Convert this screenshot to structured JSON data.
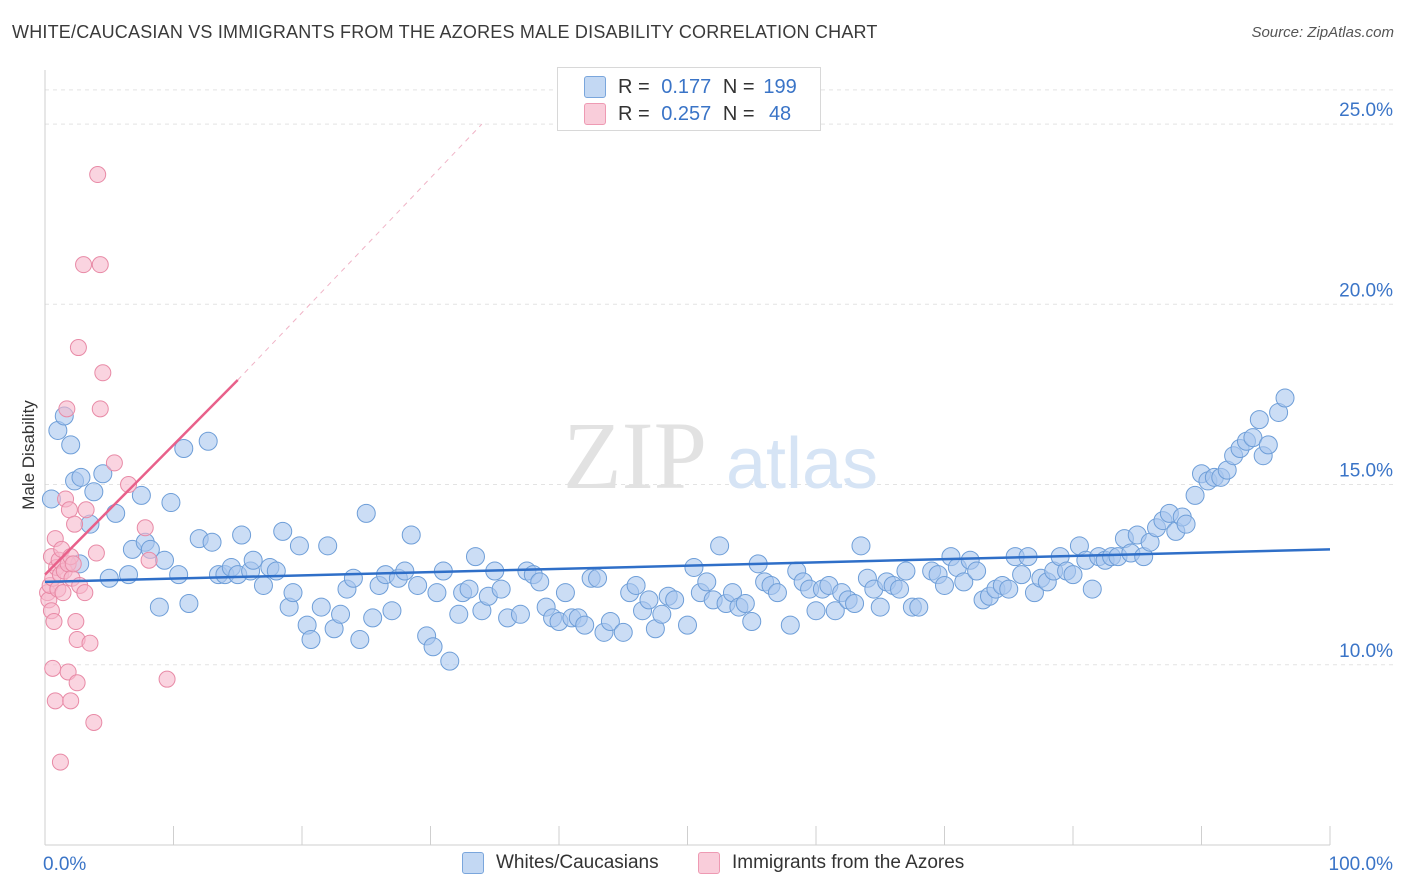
{
  "title": "WHITE/CAUCASIAN VS IMMIGRANTS FROM THE AZORES MALE DISABILITY CORRELATION CHART",
  "source": "Source: ZipAtlas.com",
  "watermark": {
    "zip": "ZIP",
    "atlas": "atlas"
  },
  "legend_top": {
    "rows": [
      {
        "r_label": "R =",
        "r_value": "0.177",
        "n_label": "N =",
        "n_value": "199",
        "color": "#a9c7ee"
      },
      {
        "r_label": "R =",
        "r_value": "0.257",
        "n_label": "N =",
        "n_value": "48",
        "color": "#f6b8cb"
      }
    ]
  },
  "legend_bottom": [
    {
      "label": "Whites/Caucasians",
      "color": "#a9c7ee"
    },
    {
      "label": "Immigrants from the Azores",
      "color": "#f6b8cb"
    }
  ],
  "colors": {
    "blue_fill": "#a9c7ee",
    "blue_stroke": "#6e9ed8",
    "blue_line": "#2f6fc8",
    "pink_fill": "#f6b8cb",
    "pink_stroke": "#e88aa6",
    "pink_line": "#e8608a",
    "axis_text": "#3a74c7",
    "grid": "#e3e3e3"
  },
  "chart_data": {
    "type": "scatter",
    "title": "WHITE/CAUCASIAN VS IMMIGRANTS FROM THE AZORES MALE DISABILITY CORRELATION CHART",
    "xlabel": "",
    "ylabel": "Male Disability",
    "xlim": [
      0,
      100
    ],
    "ylim": [
      5.0,
      26.5
    ],
    "x_tick_labels": [
      {
        "value": 0,
        "label": "0.0%"
      },
      {
        "value": 100,
        "label": "100.0%"
      }
    ],
    "y_ticks": [
      {
        "value": 10,
        "label": "10.0%"
      },
      {
        "value": 15,
        "label": "15.0%"
      },
      {
        "value": 20,
        "label": "20.0%"
      },
      {
        "value": 25,
        "label": "25.0%"
      }
    ],
    "series": [
      {
        "name": "Whites/Caucasians",
        "R": 0.177,
        "N": 199,
        "trend": {
          "x0": 0,
          "y0": 12.3,
          "x1": 100,
          "y1": 13.2
        },
        "points": [
          [
            0.5,
            14.6
          ],
          [
            1,
            16.5
          ],
          [
            1.5,
            16.9
          ],
          [
            2,
            16.1
          ],
          [
            2.3,
            15.1
          ],
          [
            2.7,
            12.8
          ],
          [
            2.8,
            15.2
          ],
          [
            3.5,
            13.9
          ],
          [
            3.8,
            14.8
          ],
          [
            4.5,
            15.3
          ],
          [
            5,
            12.4
          ],
          [
            5.5,
            14.2
          ],
          [
            6.5,
            12.5
          ],
          [
            6.8,
            13.2
          ],
          [
            7.5,
            14.7
          ],
          [
            7.8,
            13.4
          ],
          [
            8.2,
            13.2
          ],
          [
            8.9,
            11.6
          ],
          [
            9.3,
            12.9
          ],
          [
            9.8,
            14.5
          ],
          [
            10.4,
            12.5
          ],
          [
            10.8,
            16.0
          ],
          [
            11.2,
            11.7
          ],
          [
            12,
            13.5
          ],
          [
            12.7,
            16.2
          ],
          [
            13,
            13.4
          ],
          [
            13.5,
            12.5
          ],
          [
            14,
            12.5
          ],
          [
            14.5,
            12.7
          ],
          [
            15,
            12.5
          ],
          [
            15.3,
            13.6
          ],
          [
            16,
            12.6
          ],
          [
            16.2,
            12.9
          ],
          [
            17,
            12.2
          ],
          [
            17.5,
            12.7
          ],
          [
            18,
            12.6
          ],
          [
            18.5,
            13.7
          ],
          [
            19,
            11.6
          ],
          [
            19.3,
            12.0
          ],
          [
            19.8,
            13.3
          ],
          [
            20.4,
            11.1
          ],
          [
            20.7,
            10.7
          ],
          [
            21.5,
            11.6
          ],
          [
            22,
            13.3
          ],
          [
            22.5,
            11.0
          ],
          [
            23,
            11.4
          ],
          [
            23.5,
            12.1
          ],
          [
            24,
            12.4
          ],
          [
            24.5,
            10.7
          ],
          [
            25,
            14.2
          ],
          [
            25.5,
            11.3
          ],
          [
            26,
            12.2
          ],
          [
            26.5,
            12.5
          ],
          [
            27,
            11.5
          ],
          [
            27.5,
            12.4
          ],
          [
            28,
            12.6
          ],
          [
            28.5,
            13.6
          ],
          [
            29,
            12.2
          ],
          [
            29.7,
            10.8
          ],
          [
            30.2,
            10.5
          ],
          [
            30.5,
            12.0
          ],
          [
            31,
            12.6
          ],
          [
            31.5,
            10.1
          ],
          [
            32.2,
            11.4
          ],
          [
            32.5,
            12.0
          ],
          [
            33,
            12.1
          ],
          [
            33.5,
            13.0
          ],
          [
            34,
            11.5
          ],
          [
            34.5,
            11.9
          ],
          [
            35,
            12.6
          ],
          [
            35.5,
            12.1
          ],
          [
            36,
            11.3
          ],
          [
            37,
            11.4
          ],
          [
            37.5,
            12.6
          ],
          [
            38,
            12.5
          ],
          [
            38.5,
            12.3
          ],
          [
            39,
            11.6
          ],
          [
            39.5,
            11.3
          ],
          [
            40,
            11.2
          ],
          [
            40.5,
            12.0
          ],
          [
            41,
            11.3
          ],
          [
            41.5,
            11.3
          ],
          [
            42,
            11.1
          ],
          [
            42.5,
            12.4
          ],
          [
            43,
            12.4
          ],
          [
            43.5,
            10.9
          ],
          [
            44,
            11.2
          ],
          [
            45,
            10.9
          ],
          [
            45.5,
            12.0
          ],
          [
            46,
            12.2
          ],
          [
            46.5,
            11.5
          ],
          [
            47,
            11.8
          ],
          [
            47.5,
            11.0
          ],
          [
            48,
            11.4
          ],
          [
            48.5,
            11.9
          ],
          [
            49,
            11.8
          ],
          [
            50,
            11.1
          ],
          [
            50.5,
            12.7
          ],
          [
            51,
            12.0
          ],
          [
            51.5,
            12.3
          ],
          [
            52,
            11.8
          ],
          [
            52.5,
            13.3
          ],
          [
            53,
            11.7
          ],
          [
            53.5,
            12.0
          ],
          [
            54,
            11.6
          ],
          [
            54.5,
            11.7
          ],
          [
            55,
            11.2
          ],
          [
            55.5,
            12.8
          ],
          [
            56,
            12.3
          ],
          [
            56.5,
            12.2
          ],
          [
            57,
            12.0
          ],
          [
            58,
            11.1
          ],
          [
            58.5,
            12.6
          ],
          [
            59,
            12.3
          ],
          [
            59.5,
            12.1
          ],
          [
            60,
            11.5
          ],
          [
            60.5,
            12.1
          ],
          [
            61,
            12.2
          ],
          [
            61.5,
            11.5
          ],
          [
            62,
            12.0
          ],
          [
            62.5,
            11.8
          ],
          [
            63,
            11.7
          ],
          [
            63.5,
            13.3
          ],
          [
            64,
            12.4
          ],
          [
            64.5,
            12.1
          ],
          [
            65,
            11.6
          ],
          [
            65.5,
            12.3
          ],
          [
            66,
            12.2
          ],
          [
            66.5,
            12.1
          ],
          [
            67,
            12.6
          ],
          [
            67.5,
            11.6
          ],
          [
            68,
            11.6
          ],
          [
            69,
            12.6
          ],
          [
            69.5,
            12.5
          ],
          [
            70,
            12.2
          ],
          [
            70.5,
            13.0
          ],
          [
            71,
            12.7
          ],
          [
            71.5,
            12.3
          ],
          [
            72,
            12.9
          ],
          [
            72.5,
            12.6
          ],
          [
            73,
            11.8
          ],
          [
            73.5,
            11.9
          ],
          [
            74,
            12.1
          ],
          [
            74.5,
            12.2
          ],
          [
            75,
            12.1
          ],
          [
            75.5,
            13.0
          ],
          [
            76,
            12.5
          ],
          [
            76.5,
            13.0
          ],
          [
            77,
            12.0
          ],
          [
            77.5,
            12.4
          ],
          [
            78,
            12.3
          ],
          [
            78.5,
            12.6
          ],
          [
            79,
            13.0
          ],
          [
            79.5,
            12.6
          ],
          [
            80,
            12.5
          ],
          [
            80.5,
            13.3
          ],
          [
            81,
            12.9
          ],
          [
            81.5,
            12.1
          ],
          [
            82,
            13.0
          ],
          [
            82.5,
            12.9
          ],
          [
            83,
            13.0
          ],
          [
            83.5,
            13.0
          ],
          [
            84,
            13.5
          ],
          [
            84.5,
            13.1
          ],
          [
            85,
            13.6
          ],
          [
            85.5,
            13.0
          ],
          [
            86,
            13.4
          ],
          [
            86.5,
            13.8
          ],
          [
            87,
            14.0
          ],
          [
            87.5,
            14.2
          ],
          [
            88,
            13.7
          ],
          [
            88.5,
            14.1
          ],
          [
            88.8,
            13.9
          ],
          [
            89.5,
            14.7
          ],
          [
            90,
            15.3
          ],
          [
            90.5,
            15.1
          ],
          [
            91,
            15.2
          ],
          [
            91.5,
            15.2
          ],
          [
            92,
            15.4
          ],
          [
            92.5,
            15.8
          ],
          [
            93,
            16.0
          ],
          [
            93.5,
            16.2
          ],
          [
            94,
            16.3
          ],
          [
            94.5,
            16.8
          ],
          [
            94.8,
            15.8
          ],
          [
            95.2,
            16.1
          ],
          [
            96,
            17.0
          ],
          [
            96.5,
            17.4
          ]
        ]
      },
      {
        "name": "Immigrants from the Azores",
        "R": 0.257,
        "N": 48,
        "trend": {
          "x0": 0,
          "y0": 12.5,
          "x1": 15,
          "y1": 17.9
        },
        "trend_extension": {
          "x0": 15,
          "y0": 17.9,
          "x1": 34,
          "y1": 25.0
        },
        "points": [
          [
            0.2,
            12.0
          ],
          [
            0.3,
            11.8
          ],
          [
            0.4,
            12.2
          ],
          [
            0.5,
            11.5
          ],
          [
            0.5,
            13.0
          ],
          [
            0.6,
            12.4
          ],
          [
            0.7,
            11.2
          ],
          [
            0.8,
            13.5
          ],
          [
            0.9,
            12.7
          ],
          [
            1.0,
            12.1
          ],
          [
            1.1,
            12.9
          ],
          [
            1.2,
            12.5
          ],
          [
            1.3,
            13.2
          ],
          [
            1.4,
            12.0
          ],
          [
            1.5,
            12.6
          ],
          [
            1.6,
            14.6
          ],
          [
            1.7,
            17.1
          ],
          [
            1.8,
            12.8
          ],
          [
            1.9,
            14.3
          ],
          [
            2.0,
            13.0
          ],
          [
            2.1,
            12.4
          ],
          [
            2.2,
            12.8
          ],
          [
            2.3,
            13.9
          ],
          [
            2.4,
            11.2
          ],
          [
            2.5,
            10.7
          ],
          [
            2.6,
            18.8
          ],
          [
            2.7,
            12.2
          ],
          [
            3.0,
            21.1
          ],
          [
            3.2,
            14.3
          ],
          [
            3.5,
            10.6
          ],
          [
            3.8,
            8.4
          ],
          [
            4.3,
            21.1
          ],
          [
            4.0,
            13.1
          ],
          [
            3.1,
            12.0
          ],
          [
            0.6,
            9.9
          ],
          [
            0.8,
            9.0
          ],
          [
            1.2,
            7.3
          ],
          [
            1.8,
            9.8
          ],
          [
            2.0,
            9.0
          ],
          [
            2.5,
            9.5
          ],
          [
            4.1,
            23.6
          ],
          [
            4.3,
            17.1
          ],
          [
            4.5,
            18.1
          ],
          [
            5.4,
            15.6
          ],
          [
            6.5,
            15.0
          ],
          [
            7.8,
            13.8
          ],
          [
            8.1,
            12.9
          ],
          [
            9.5,
            9.6
          ]
        ]
      }
    ]
  }
}
